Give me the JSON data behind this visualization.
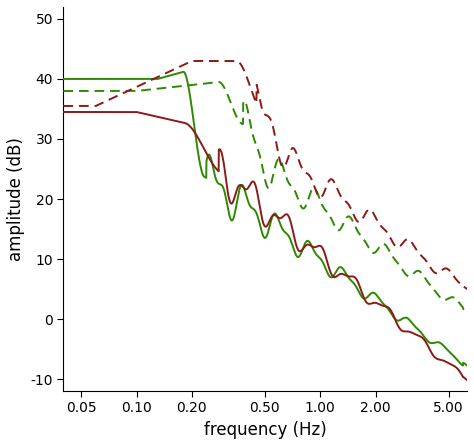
{
  "xlabel": "frequency (Hz)",
  "ylabel": "amplitude (dB)",
  "ylim": [
    -12,
    52
  ],
  "yticks": [
    -10,
    0,
    10,
    20,
    30,
    40,
    50
  ],
  "xticks": [
    0.05,
    0.1,
    0.2,
    0.5,
    1.0,
    2.0,
    5.0
  ],
  "xtick_labels": [
    "0.05",
    "0.10",
    "0.20",
    "0.50",
    "1.00",
    "2.00",
    "5.00"
  ],
  "green_color": "#2d8a00",
  "red_color": "#8b1a1a",
  "linewidth": 1.4,
  "background_color": "#ffffff"
}
